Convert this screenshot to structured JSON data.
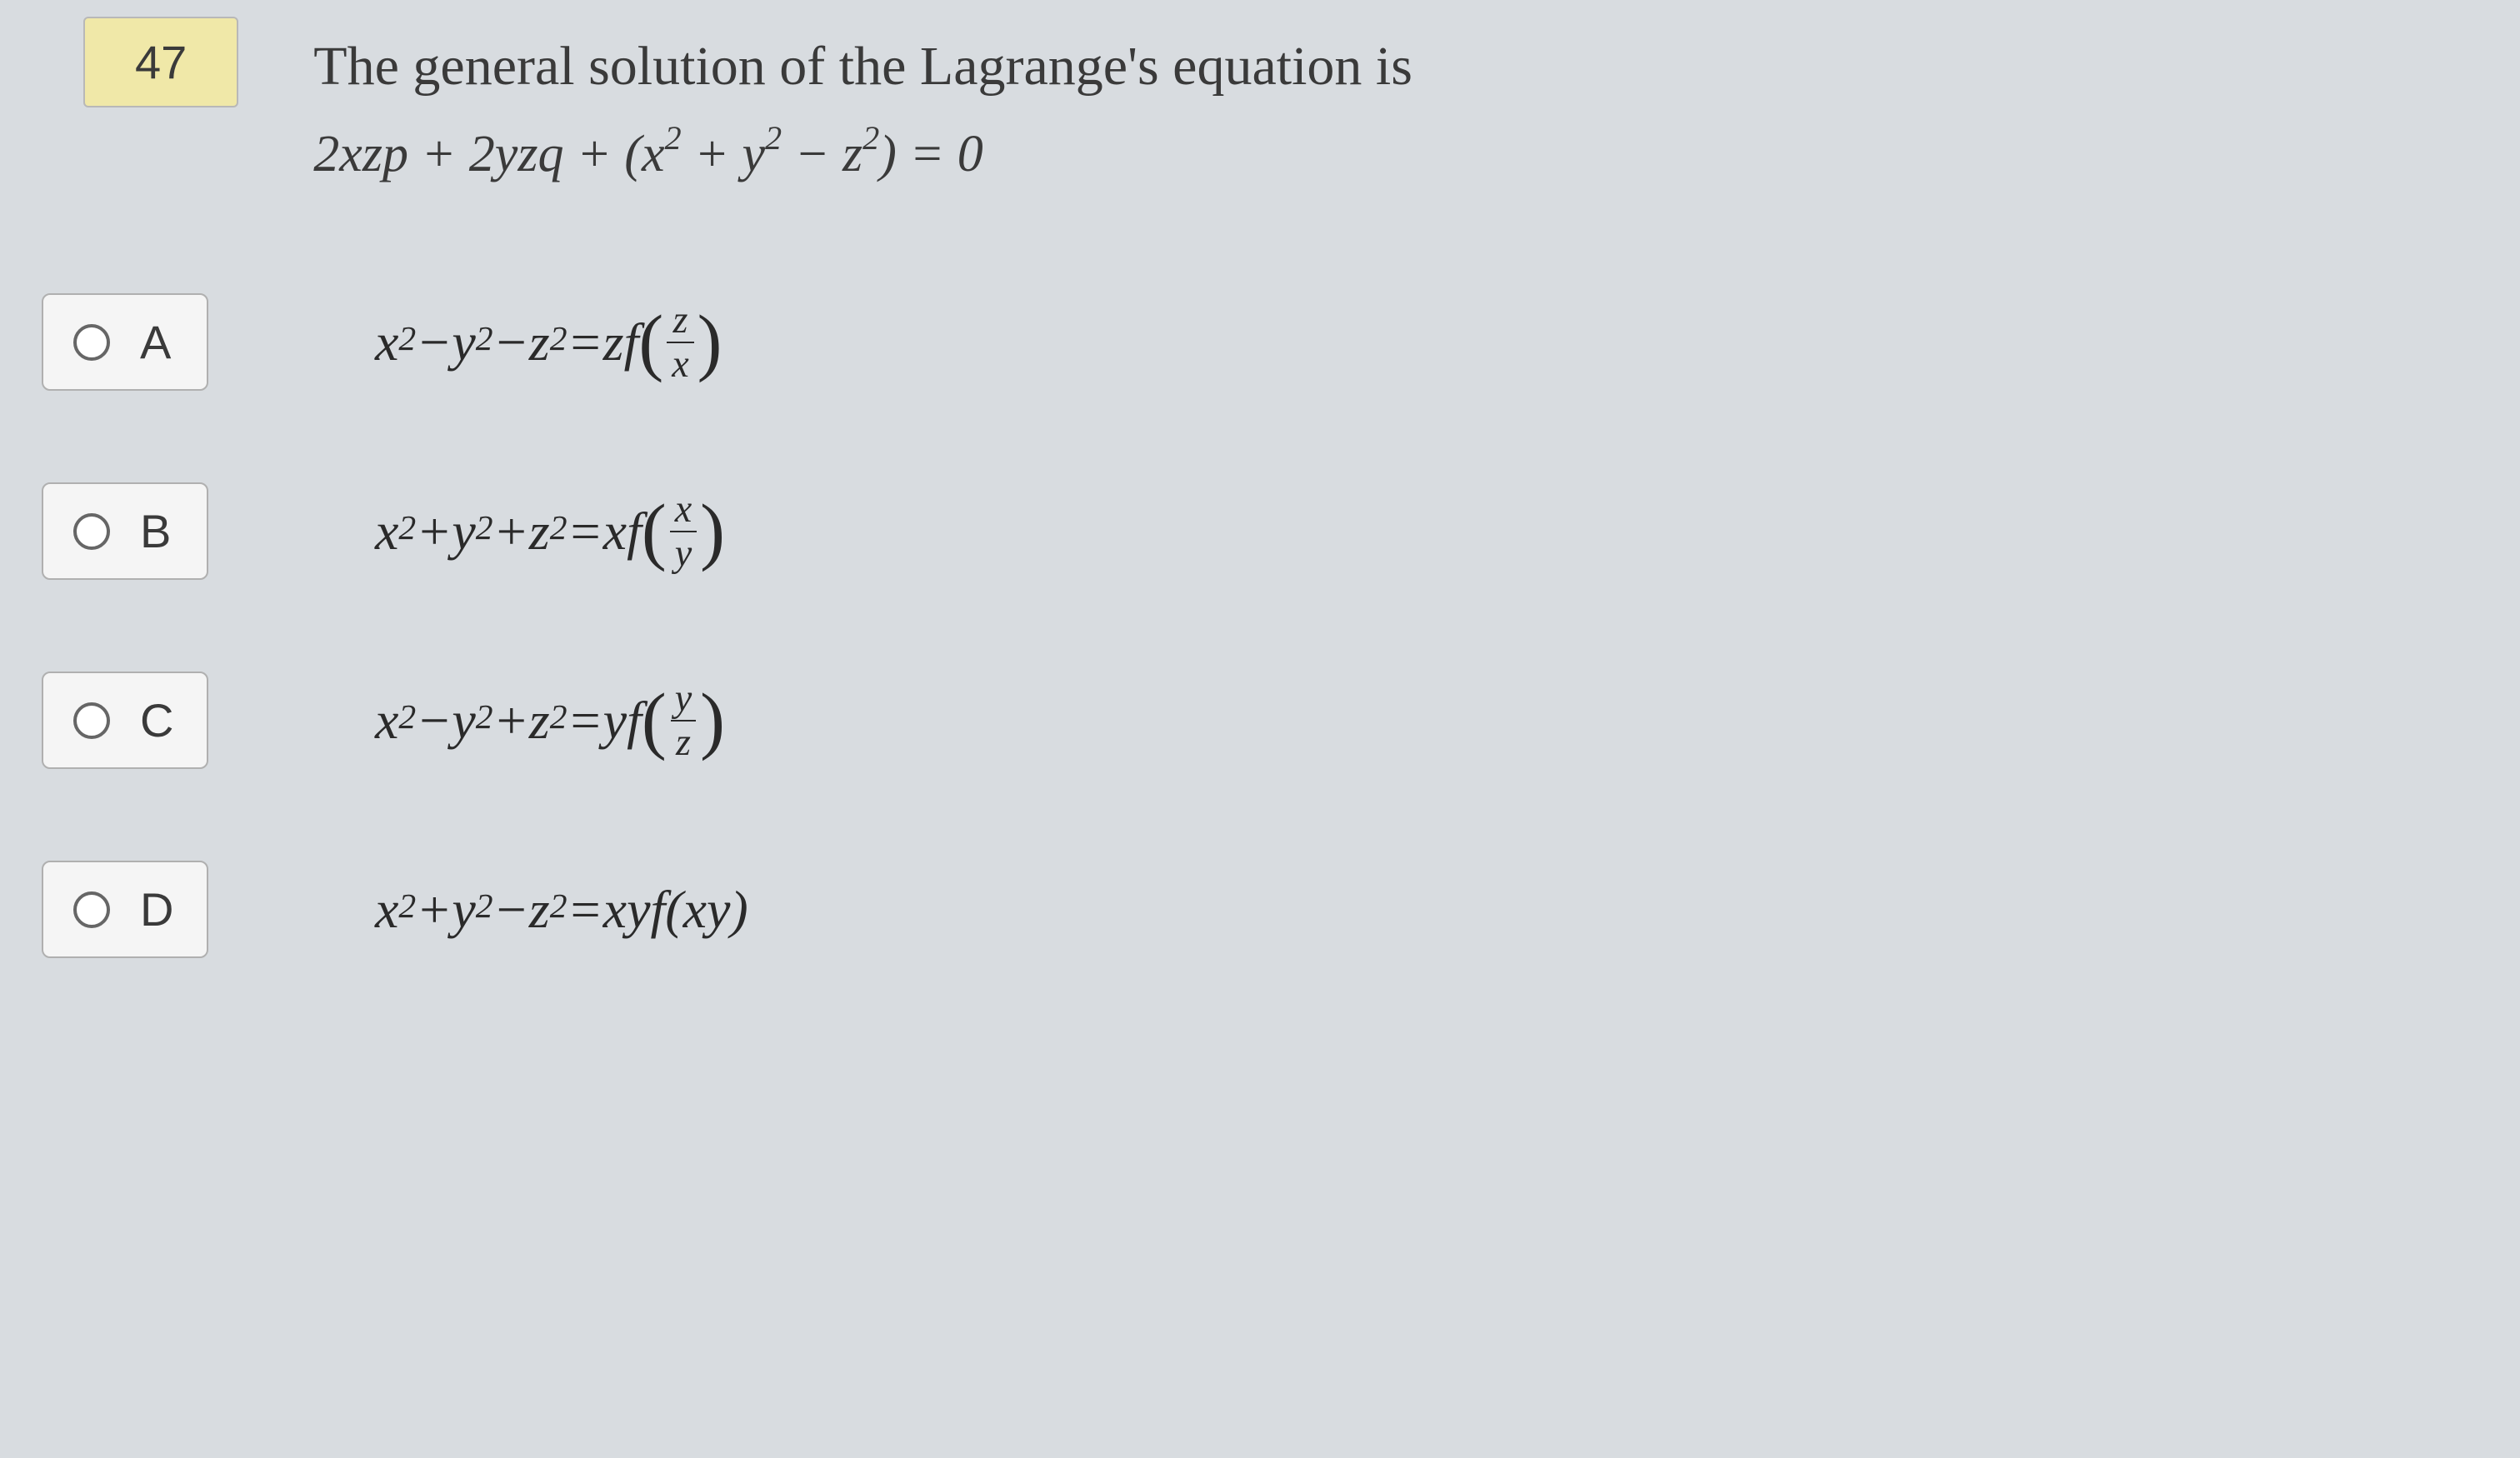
{
  "question_number": "47",
  "question_text": "The general solution of the Lagrange's equation is",
  "equation_html": "2<i>xzp</i> + 2<i>yzq</i> + (<i>x</i><span class='sup'>2</span> + <i>y</i><span class='sup'>2</span> − <i>z</i><span class='sup'>2</span>) = 0",
  "options": [
    {
      "letter": "A",
      "formula_html": "<i>x</i><span class='sup'>2</span> − <i>y</i><span class='sup'>2</span> − <i>z</i><span class='sup'>2</span> = <i>zf</i> <span class='paren'>(</span><span class='frac'><span class='frac-num'><i>z</i></span><span class='frac-den'><i>x</i></span></span><span class='paren'>)</span>"
    },
    {
      "letter": "B",
      "formula_html": "<i>x</i><span class='sup'>2</span> + <i>y</i><span class='sup'>2</span> + <i>z</i><span class='sup'>2</span> = <i>xf</i> <span class='paren'>(</span><span class='frac'><span class='frac-num'><i>x</i></span><span class='frac-den'><i>y</i></span></span><span class='paren'>)</span>"
    },
    {
      "letter": "C",
      "formula_html": "<i>x</i><span class='sup'>2</span> − <i>y</i><span class='sup'>2</span> + <i>z</i><span class='sup'>2</span> = <i>yf</i> <span class='paren'>(</span><span class='frac'><span class='frac-num'><i>y</i></span><span class='frac-den'><i>z</i></span></span><span class='paren'>)</span>"
    },
    {
      "letter": "D",
      "formula_html": "<i>x</i><span class='sup'>2</span> + <i>y</i><span class='sup'>2</span> − <i>z</i><span class='sup'>2</span> = <i>xyf</i>(<i>xy</i>)"
    }
  ],
  "colors": {
    "background": "#d8dce0",
    "question_number_bg": "#f0e8a8",
    "option_bg": "#f5f5f5",
    "border": "#b0b0b0",
    "text": "#2a2a2a"
  },
  "typography": {
    "question_number_fontsize": 56,
    "question_text_fontsize": 66,
    "formula_fontsize": 64,
    "option_letter_fontsize": 56
  }
}
